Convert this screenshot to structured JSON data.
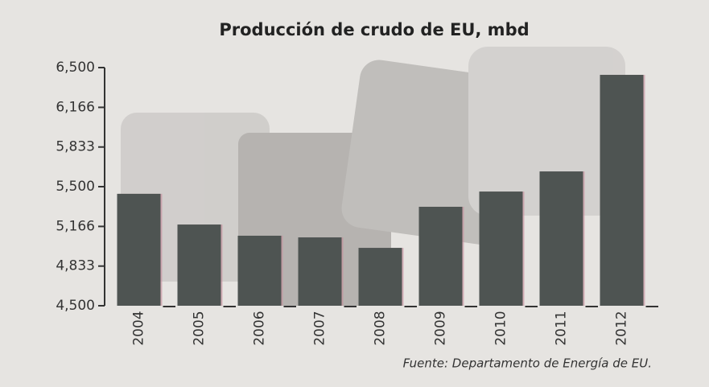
{
  "chart_data": {
    "type": "bar",
    "title": "Producción de crudo de EU, mbd",
    "source": "Fuente: Departamento de Energía de EU.",
    "categories": [
      "2004",
      "2005",
      "2006",
      "2007",
      "2008",
      "2009",
      "2010",
      "2011",
      "2012"
    ],
    "values": [
      5440,
      5182,
      5088,
      5074,
      4986,
      5331,
      5459,
      5628,
      6439
    ],
    "color": "#4e5452",
    "ylim": [
      4500,
      6500
    ],
    "yticks": [
      {
        "value": 4500,
        "label": "4,500"
      },
      {
        "value": 4833,
        "label": "4,833"
      },
      {
        "value": 5166,
        "label": "5,166"
      },
      {
        "value": 5500,
        "label": "5,500"
      },
      {
        "value": 5833,
        "label": "5,833"
      },
      {
        "value": 6166,
        "label": "6,166"
      },
      {
        "value": 6500,
        "label": "6,500"
      }
    ]
  }
}
